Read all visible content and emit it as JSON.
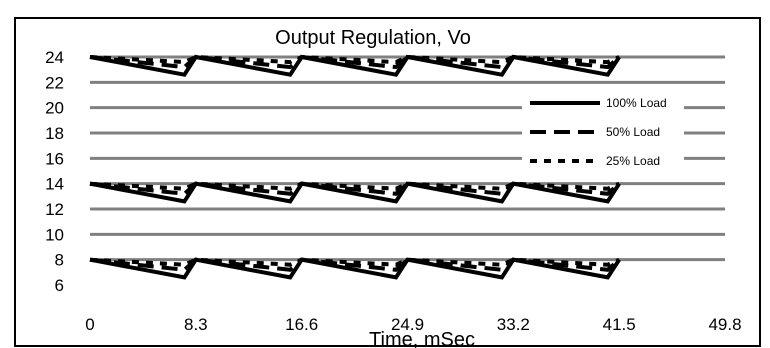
{
  "chart_data": {
    "type": "line",
    "title": "Output Regulation, Vo",
    "xlabel": "Time, mSec",
    "ylabel": "",
    "x_ticks": [
      "0",
      "8.3",
      "16.6",
      "24.9",
      "33.2",
      "41.5",
      "49.8"
    ],
    "y_ticks": [
      "6",
      "8",
      "10",
      "12",
      "14",
      "16",
      "18",
      "20",
      "22",
      "24"
    ],
    "xlim": [
      0,
      49.8
    ],
    "ylim": [
      6,
      24
    ],
    "grid": true,
    "legend_position": "right",
    "ripple_period_ms": 8.3,
    "series": [
      {
        "name": "100% Load",
        "style": "solid",
        "groups": [
          {
            "nominal": 24,
            "peak": 24,
            "trough": 22.6
          },
          {
            "nominal": 14,
            "peak": 14,
            "trough": 12.6
          },
          {
            "nominal": 8,
            "peak": 8,
            "trough": 6.6
          }
        ]
      },
      {
        "name": "50% Load",
        "style": "dashed",
        "groups": [
          {
            "nominal": 24,
            "peak": 24,
            "trough": 23.2
          },
          {
            "nominal": 14,
            "peak": 14,
            "trough": 13.2
          },
          {
            "nominal": 8,
            "peak": 8,
            "trough": 7.2
          }
        ]
      },
      {
        "name": "25% Load",
        "style": "dotted",
        "groups": [
          {
            "nominal": 24,
            "peak": 24,
            "trough": 23.6
          },
          {
            "nominal": 14,
            "peak": 14,
            "trough": 13.6
          },
          {
            "nominal": 8,
            "peak": 8,
            "trough": 7.6
          }
        ]
      }
    ],
    "line_color": "#000000",
    "grid_color": "#808080",
    "frame_color": "#000000"
  }
}
